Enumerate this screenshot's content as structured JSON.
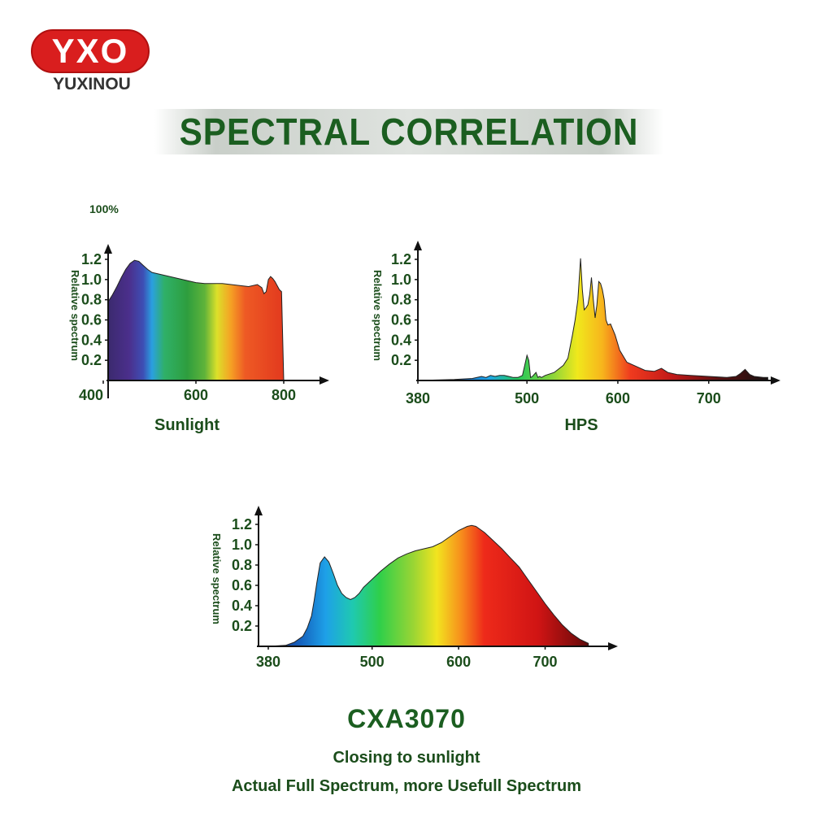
{
  "brand": {
    "logo_text": "YXO",
    "name": "YUXINOU"
  },
  "title": "SPECTRAL CORRELATION",
  "footer": {
    "model": "CXA3070",
    "line1": "Closing to sunlight",
    "line2": "Actual Full Spectrum, more Usefull Spectrum"
  },
  "colors": {
    "title_green": "#1b5e20",
    "label_green": "#1b4d1b",
    "logo_red": "#d91e1e"
  },
  "chart_data": [
    {
      "type": "area",
      "caption": "Sunlight",
      "top_label": "100%",
      "ylabel": "Relative spectrum",
      "xlim": [
        400,
        800
      ],
      "ylim": [
        0,
        1.3
      ],
      "x_ticks": [
        400,
        600,
        800
      ],
      "y_ticks": [
        "0.2",
        "0.4",
        "0.6",
        "0.8",
        "1.0",
        "1.2"
      ],
      "series": [
        {
          "x": [
            400,
            410,
            420,
            430,
            440,
            450,
            460,
            470,
            480,
            490,
            500,
            520,
            540,
            560,
            580,
            600,
            620,
            640,
            660,
            680,
            700,
            720,
            740,
            750,
            755,
            760,
            765,
            770,
            775,
            780,
            785,
            790,
            795,
            800
          ],
          "y": [
            0.78,
            0.85,
            0.93,
            1.02,
            1.1,
            1.16,
            1.19,
            1.18,
            1.14,
            1.1,
            1.07,
            1.05,
            1.03,
            1.01,
            0.99,
            0.97,
            0.96,
            0.96,
            0.96,
            0.95,
            0.94,
            0.93,
            0.95,
            0.92,
            0.86,
            0.88,
            1.0,
            1.03,
            1.01,
            0.98,
            0.94,
            0.9,
            0.88,
            0.0
          ]
        }
      ]
    },
    {
      "type": "area",
      "caption": "HPS",
      "ylabel": "Relative spectrum",
      "xlim": [
        380,
        770
      ],
      "ylim": [
        0,
        1.3
      ],
      "x_ticks": [
        380,
        500,
        600,
        700
      ],
      "y_ticks": [
        "0.2",
        "0.4",
        "0.6",
        "0.8",
        "1.0",
        "1.2"
      ],
      "series": [
        {
          "x": [
            380,
            420,
            440,
            450,
            455,
            460,
            465,
            470,
            475,
            480,
            485,
            490,
            495,
            500,
            502,
            504,
            506,
            510,
            512,
            514,
            516,
            520,
            530,
            540,
            545,
            550,
            553,
            556,
            559,
            561,
            563,
            565,
            567,
            569,
            571,
            573,
            575,
            577,
            579,
            581,
            583,
            585,
            587,
            589,
            592,
            597,
            602,
            610,
            620,
            630,
            640,
            648,
            655,
            665,
            680,
            700,
            720,
            730,
            735,
            740,
            745,
            750,
            760,
            765
          ],
          "y": [
            0.0,
            0.01,
            0.02,
            0.04,
            0.03,
            0.05,
            0.04,
            0.05,
            0.05,
            0.04,
            0.03,
            0.03,
            0.05,
            0.25,
            0.2,
            0.03,
            0.04,
            0.08,
            0.03,
            0.04,
            0.03,
            0.05,
            0.08,
            0.15,
            0.22,
            0.45,
            0.6,
            0.8,
            1.21,
            0.9,
            0.7,
            0.72,
            0.75,
            0.85,
            1.02,
            0.8,
            0.62,
            0.75,
            0.98,
            0.96,
            0.9,
            0.8,
            0.6,
            0.55,
            0.56,
            0.45,
            0.3,
            0.18,
            0.14,
            0.1,
            0.09,
            0.12,
            0.08,
            0.06,
            0.05,
            0.04,
            0.03,
            0.04,
            0.07,
            0.11,
            0.06,
            0.04,
            0.03,
            0.03
          ]
        }
      ]
    },
    {
      "type": "area",
      "caption": "CXA3070",
      "ylabel": "Relative spectrum",
      "xlim": [
        380,
        770
      ],
      "ylim": [
        0,
        1.3
      ],
      "x_ticks": [
        380,
        500,
        600,
        700
      ],
      "y_ticks": [
        "0.2",
        "0.4",
        "0.6",
        "0.8",
        "1.0",
        "1.2"
      ],
      "series": [
        {
          "x": [
            380,
            400,
            410,
            420,
            425,
            430,
            433,
            436,
            440,
            445,
            450,
            455,
            460,
            465,
            470,
            475,
            480,
            485,
            490,
            500,
            510,
            520,
            530,
            540,
            550,
            560,
            570,
            580,
            590,
            600,
            610,
            615,
            620,
            630,
            640,
            650,
            660,
            670,
            680,
            690,
            700,
            710,
            720,
            730,
            740,
            750
          ],
          "y": [
            0.0,
            0.01,
            0.04,
            0.1,
            0.18,
            0.3,
            0.45,
            0.62,
            0.82,
            0.88,
            0.83,
            0.72,
            0.6,
            0.52,
            0.48,
            0.46,
            0.48,
            0.52,
            0.58,
            0.66,
            0.74,
            0.81,
            0.87,
            0.91,
            0.94,
            0.96,
            0.98,
            1.02,
            1.08,
            1.14,
            1.18,
            1.19,
            1.18,
            1.12,
            1.04,
            0.96,
            0.87,
            0.78,
            0.66,
            0.54,
            0.42,
            0.31,
            0.21,
            0.13,
            0.07,
            0.03
          ]
        }
      ]
    }
  ]
}
